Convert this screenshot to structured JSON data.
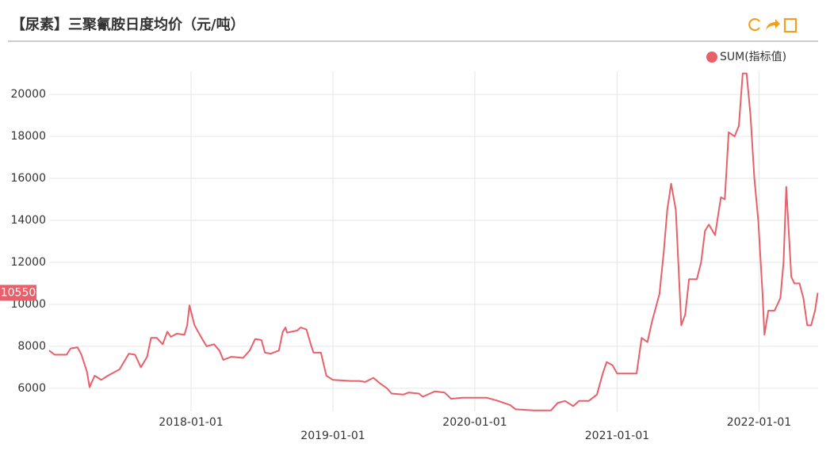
{
  "chart_data": {
    "type": "line",
    "title": "【尿素】三聚氰胺日度均价（元/吨）",
    "x": [
      "2017-01-01",
      "2017-01-15",
      "2017-02-15",
      "2017-02-25",
      "2017-03-15",
      "2017-03-25",
      "2017-04-08",
      "2017-04-15",
      "2017-04-28",
      "2017-05-15",
      "2017-06-01",
      "2017-07-01",
      "2017-07-25",
      "2017-08-10",
      "2017-08-25",
      "2017-09-10",
      "2017-09-20",
      "2017-10-05",
      "2017-10-20",
      "2017-11-01",
      "2017-11-10",
      "2017-11-25",
      "2017-12-15",
      "2017-12-22",
      "2017-12-28",
      "2018-01-10",
      "2018-01-25",
      "2018-02-10",
      "2018-03-01",
      "2018-03-15",
      "2018-03-25",
      "2018-04-15",
      "2018-05-15",
      "2018-06-01",
      "2018-06-15",
      "2018-07-01",
      "2018-07-10",
      "2018-07-25",
      "2018-08-15",
      "2018-08-25",
      "2018-09-01",
      "2018-09-05",
      "2018-10-01",
      "2018-10-10",
      "2018-10-25",
      "2018-11-05",
      "2018-11-12",
      "2018-12-01",
      "2018-12-15",
      "2019-01-01",
      "2019-02-15",
      "2019-03-10",
      "2019-03-25",
      "2019-04-15",
      "2019-05-01",
      "2019-05-20",
      "2019-06-01",
      "2019-07-01",
      "2019-07-15",
      "2019-08-10",
      "2019-08-20",
      "2019-09-20",
      "2019-10-15",
      "2019-11-01",
      "2019-12-01",
      "2020-02-01",
      "2020-03-01",
      "2020-04-01",
      "2020-04-15",
      "2020-06-01",
      "2020-07-15",
      "2020-08-01",
      "2020-08-20",
      "2020-09-10",
      "2020-09-25",
      "2020-10-20",
      "2020-11-10",
      "2020-11-25",
      "2020-12-05",
      "2020-12-20",
      "2021-01-01",
      "2021-02-20",
      "2021-03-05",
      "2021-03-20",
      "2021-04-01",
      "2021-04-20",
      "2021-05-01",
      "2021-05-10",
      "2021-05-20",
      "2021-06-01",
      "2021-06-15",
      "2021-06-25",
      "2021-07-05",
      "2021-07-25",
      "2021-08-05",
      "2021-08-15",
      "2021-08-25",
      "2021-09-10",
      "2021-09-25",
      "2021-10-05",
      "2021-10-15",
      "2021-10-30",
      "2021-11-10",
      "2021-11-20",
      "2021-11-30",
      "2021-12-10",
      "2021-12-20",
      "2021-12-30",
      "2022-01-10",
      "2022-01-15",
      "2022-01-25",
      "2022-02-10",
      "2022-02-25",
      "2022-03-05",
      "2022-03-12",
      "2022-03-25",
      "2022-04-02",
      "2022-04-15",
      "2022-04-25",
      "2022-05-05",
      "2022-05-15",
      "2022-05-25",
      "2022-06-01"
    ],
    "series": [
      {
        "name": "SUM(指标值)",
        "color": "#e8606a",
        "values": [
          7800,
          7600,
          7600,
          7900,
          7950,
          7600,
          6800,
          6050,
          6600,
          6400,
          6600,
          6900,
          7650,
          7600,
          7000,
          7500,
          8400,
          8400,
          8100,
          8700,
          8450,
          8600,
          8550,
          9000,
          9950,
          9000,
          8500,
          8000,
          8100,
          7800,
          7350,
          7500,
          7450,
          7800,
          8350,
          8300,
          7700,
          7650,
          7800,
          8700,
          8900,
          8650,
          8750,
          8900,
          8800,
          8100,
          7700,
          7700,
          6600,
          6400,
          6350,
          6350,
          6300,
          6500,
          6250,
          6000,
          5750,
          5700,
          5800,
          5750,
          5600,
          5850,
          5800,
          5500,
          5550,
          5550,
          5400,
          5200,
          5000,
          4950,
          4950,
          5300,
          5400,
          5150,
          5400,
          5400,
          5700,
          6700,
          7250,
          7100,
          6700,
          6700,
          8400,
          8200,
          9200,
          10500,
          12500,
          14500,
          15750,
          14500,
          9000,
          9500,
          11200,
          11200,
          12000,
          13500,
          13800,
          13300,
          15100,
          15000,
          18200,
          18000,
          18500,
          21000,
          21000,
          19000,
          16000,
          14000,
          10500,
          8550,
          9700,
          9700,
          10300,
          12000,
          15600,
          11300,
          11000,
          11000,
          10300,
          9000,
          9000,
          9700,
          10550
        ]
      }
    ],
    "xlim": [
      "2017-01-01",
      "2022-06-02"
    ],
    "xticks": [
      "2018-01-01",
      "2019-01-01",
      "2020-01-01",
      "2021-01-01",
      "2022-01-01"
    ],
    "ylim": [
      4900,
      21100
    ],
    "yticks": [
      6000,
      8000,
      10000,
      12000,
      14000,
      16000,
      18000,
      20000
    ],
    "grid": true,
    "legend": "top-right"
  }
}
